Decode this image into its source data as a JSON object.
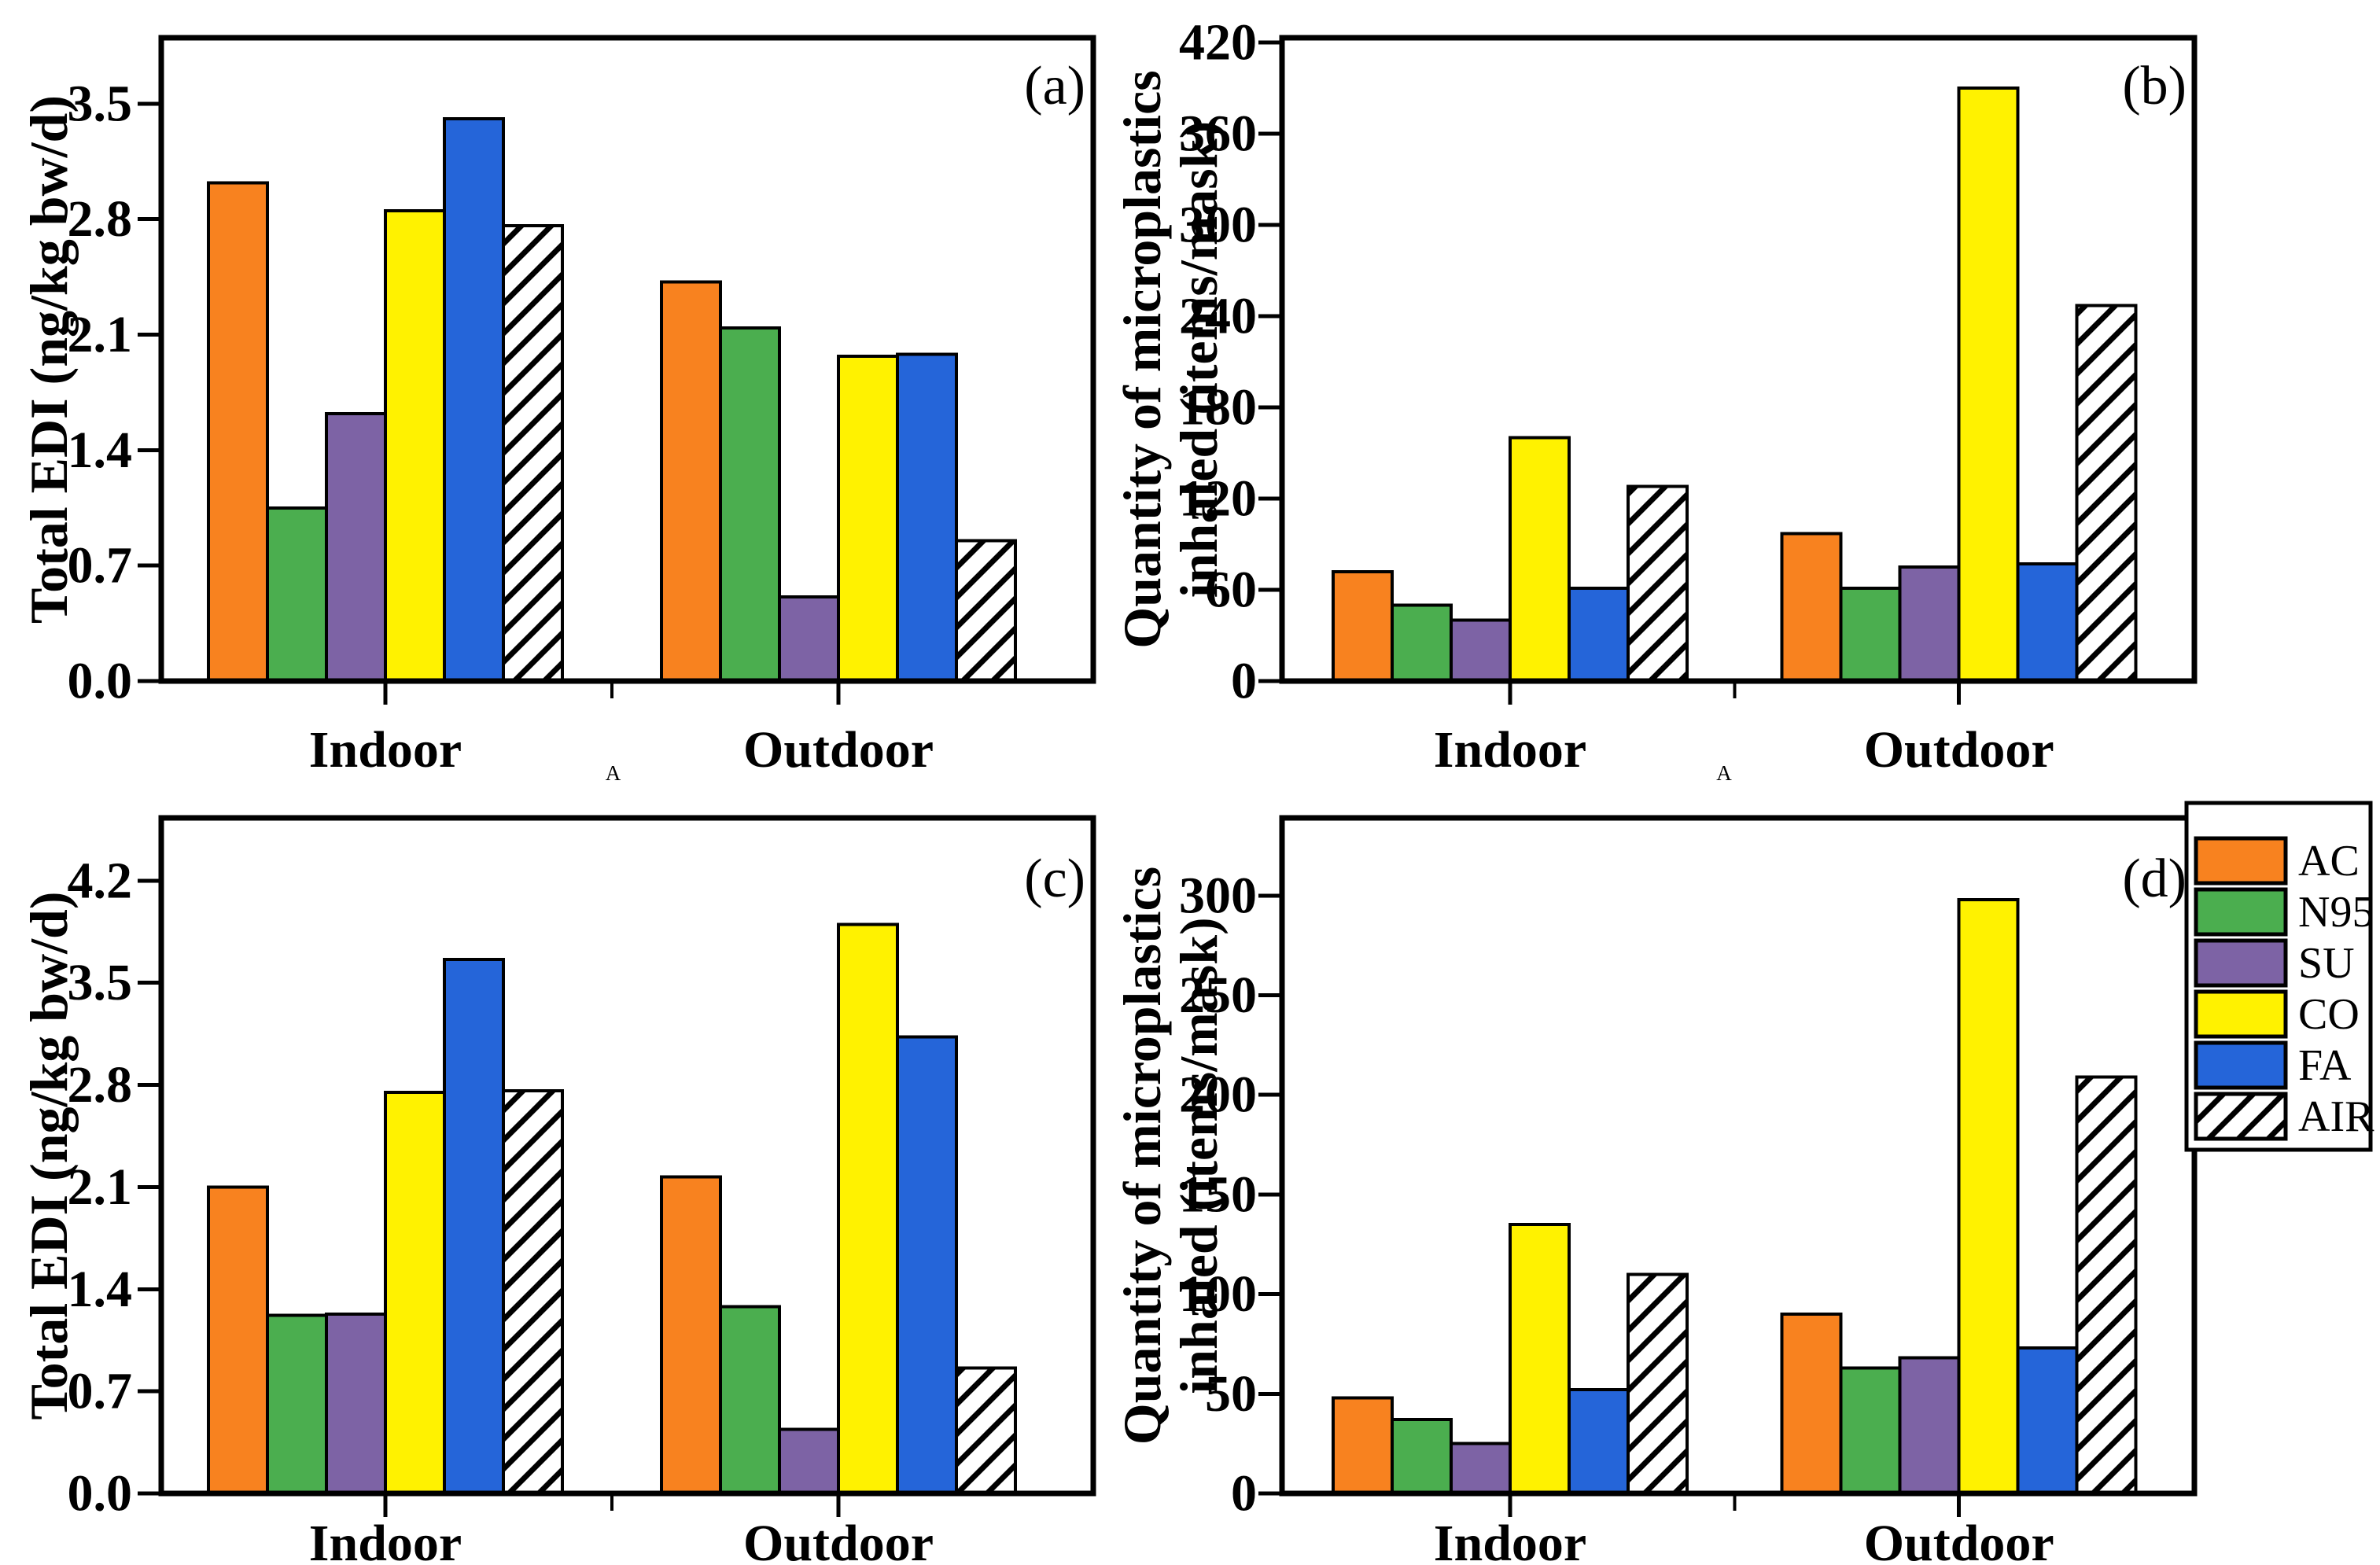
{
  "figure": {
    "background": "#ffffff",
    "axis_color": "#000000",
    "series_colors": {
      "AC": "#F8821F",
      "N95": "#4BAE4F",
      "SU": "#7D63A5",
      "CO": "#FFF200",
      "FA": "#2565D9",
      "AIR": "hatch"
    }
  },
  "legend": {
    "position": "outside-top-right-of-panel-d",
    "items": [
      {
        "label": "AC",
        "fill": "#F8821F",
        "hatch": false
      },
      {
        "label": "N95",
        "fill": "#4BAE4F",
        "hatch": false
      },
      {
        "label": "SU",
        "fill": "#7D63A5",
        "hatch": false
      },
      {
        "label": "CO",
        "fill": "#FFF200",
        "hatch": false
      },
      {
        "label": "FA",
        "fill": "#2565D9",
        "hatch": false
      },
      {
        "label": "AIR",
        "fill": "#FFFFFF",
        "hatch": true
      }
    ]
  },
  "chart_data": [
    {
      "id": "a",
      "type": "bar",
      "panel_label": "(a)",
      "ylabel": "Total EDI (ng/kg bw/d)",
      "ylabel_side": "left",
      "xlabel": "A",
      "categories": [
        "Indoor",
        "Outdoor"
      ],
      "series": [
        {
          "name": "AC",
          "values": [
            3.02,
            2.42
          ]
        },
        {
          "name": "N95",
          "values": [
            1.05,
            2.14
          ]
        },
        {
          "name": "SU",
          "values": [
            1.62,
            0.51
          ]
        },
        {
          "name": "CO",
          "values": [
            2.85,
            1.97
          ]
        },
        {
          "name": "FA",
          "values": [
            3.41,
            1.98
          ]
        },
        {
          "name": "AIR",
          "values": [
            2.76,
            0.85
          ]
        }
      ],
      "yticks": [
        0.0,
        0.7,
        1.4,
        2.1,
        2.8,
        3.5
      ],
      "ytick_labels": [
        "0.0",
        "0.7",
        "1.4",
        "2.1",
        "2.8",
        "3.5"
      ],
      "ylim": [
        0,
        3.9
      ],
      "grid": false
    },
    {
      "id": "b",
      "type": "bar",
      "panel_label": "(b)",
      "ylabel": [
        "Quantity of microplastics",
        "inhaled (items/mask)"
      ],
      "ylabel_side": "left-of-axis-two-line",
      "xlabel": "A",
      "categories": [
        "Indoor",
        "Outdoor"
      ],
      "series": [
        {
          "name": "AC",
          "values": [
            72,
            97
          ]
        },
        {
          "name": "N95",
          "values": [
            50,
            61
          ]
        },
        {
          "name": "SU",
          "values": [
            40,
            75
          ]
        },
        {
          "name": "CO",
          "values": [
            160,
            390
          ]
        },
        {
          "name": "FA",
          "values": [
            61,
            77
          ]
        },
        {
          "name": "AIR",
          "values": [
            128,
            247
          ]
        }
      ],
      "yticks": [
        0,
        60,
        120,
        180,
        240,
        300,
        360,
        420
      ],
      "ytick_labels": [
        "0",
        "60",
        "120",
        "180",
        "240",
        "300",
        "360",
        "420"
      ],
      "ylim": [
        0,
        423
      ],
      "grid": false
    },
    {
      "id": "c",
      "type": "bar",
      "panel_label": "(c)",
      "ylabel": "Total EDI (ng/kg bw/d)",
      "ylabel_side": "left",
      "xlabel": "",
      "categories": [
        "Indoor",
        "Outdoor"
      ],
      "series": [
        {
          "name": "AC",
          "values": [
            2.1,
            2.17
          ]
        },
        {
          "name": "N95",
          "values": [
            1.22,
            1.28
          ]
        },
        {
          "name": "SU",
          "values": [
            1.23,
            0.44
          ]
        },
        {
          "name": "CO",
          "values": [
            2.75,
            3.9
          ]
        },
        {
          "name": "FA",
          "values": [
            3.66,
            3.13
          ]
        },
        {
          "name": "AIR",
          "values": [
            2.76,
            0.86
          ]
        }
      ],
      "yticks": [
        0.0,
        0.7,
        1.4,
        2.1,
        2.8,
        3.5,
        4.2
      ],
      "ytick_labels": [
        "0.0",
        "0.7",
        "1.4",
        "2.1",
        "2.8",
        "3.5",
        "4.2"
      ],
      "ylim": [
        0,
        4.63
      ],
      "grid": false
    },
    {
      "id": "d",
      "type": "bar",
      "panel_label": "(d)",
      "ylabel": [
        "Quantity of microplastics",
        "inhaled (items/mask)"
      ],
      "ylabel_side": "left-of-axis-two-line",
      "xlabel": "",
      "categories": [
        "Indoor",
        "Outdoor"
      ],
      "series": [
        {
          "name": "AC",
          "values": [
            48,
            90
          ]
        },
        {
          "name": "N95",
          "values": [
            37,
            63
          ]
        },
        {
          "name": "SU",
          "values": [
            25,
            68
          ]
        },
        {
          "name": "CO",
          "values": [
            135,
            298
          ]
        },
        {
          "name": "FA",
          "values": [
            52,
            73
          ]
        },
        {
          "name": "AIR",
          "values": [
            110,
            209
          ]
        }
      ],
      "yticks": [
        0,
        50,
        100,
        150,
        200,
        250,
        300
      ],
      "ytick_labels": [
        "0",
        "50",
        "100",
        "150",
        "200",
        "250",
        "300"
      ],
      "ylim": [
        0,
        339
      ],
      "grid": false
    }
  ]
}
